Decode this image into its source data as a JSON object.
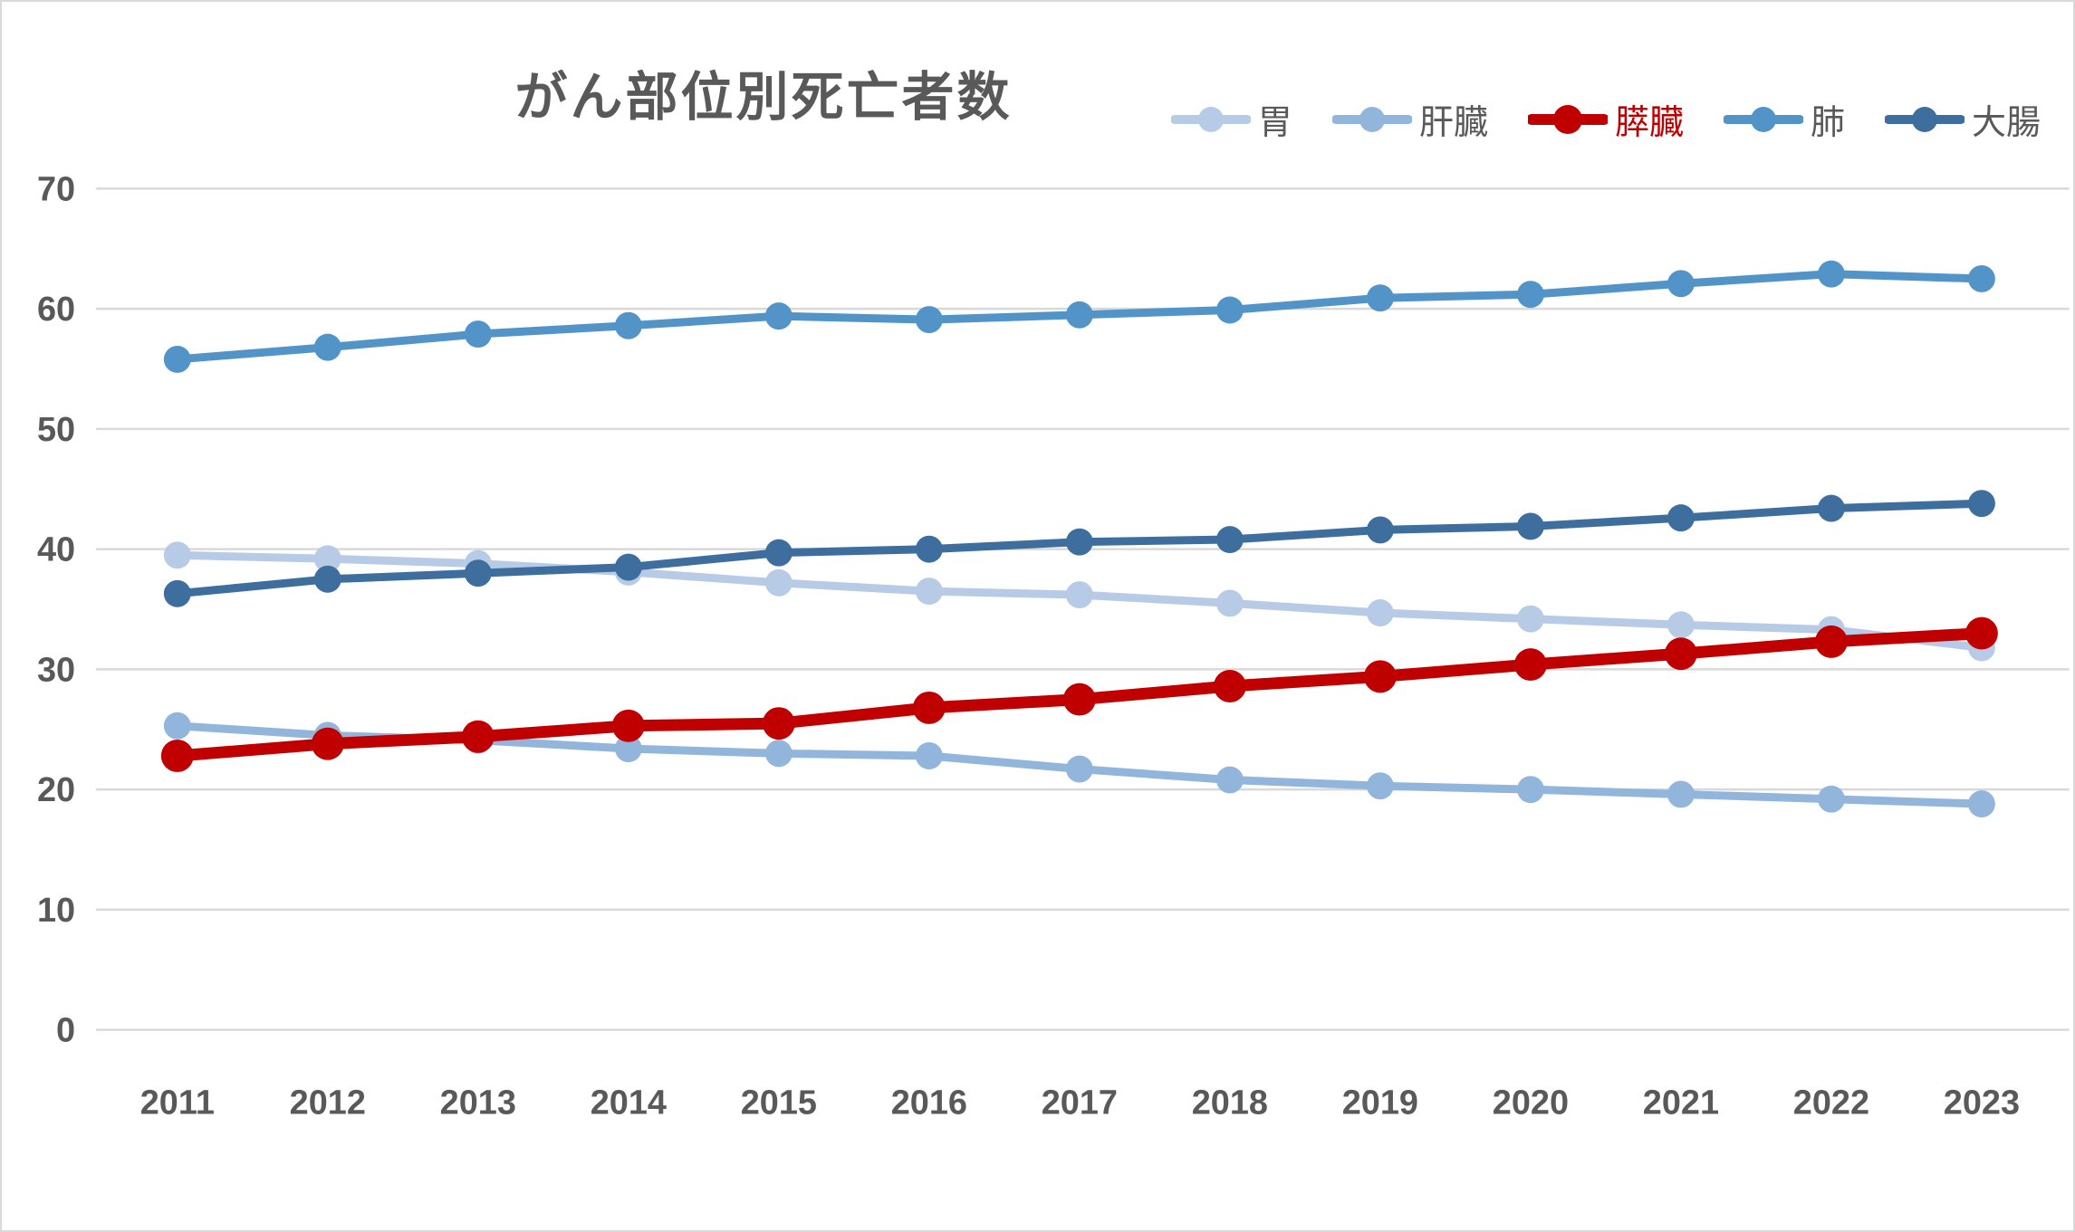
{
  "chart_data": {
    "type": "line",
    "title": "がん部位別死亡者数",
    "x": [
      2011,
      2012,
      2013,
      2014,
      2015,
      2016,
      2017,
      2018,
      2019,
      2020,
      2021,
      2022,
      2023
    ],
    "xlabel": "",
    "ylabel": "",
    "ylim": [
      0,
      70
    ],
    "ytick_step": 10,
    "yticks": [
      0,
      10,
      20,
      30,
      40,
      50,
      60,
      70
    ],
    "grid": true,
    "legend_position": "top-right",
    "gridline_color": "#d9d9d9",
    "axis_text_color": "#595959",
    "title_color": "#595959",
    "series": [
      {
        "name": "胃",
        "color": "#b7cbe6",
        "emphasis": false,
        "values": [
          39.5,
          39.2,
          38.8,
          38.1,
          37.2,
          36.5,
          36.2,
          35.5,
          34.7,
          34.2,
          33.7,
          33.3,
          31.8
        ]
      },
      {
        "name": "肝臓",
        "color": "#92b5dc",
        "emphasis": false,
        "values": [
          25.3,
          24.5,
          24.1,
          23.4,
          23.0,
          22.8,
          21.7,
          20.8,
          20.3,
          20.0,
          19.6,
          19.2,
          18.8
        ]
      },
      {
        "name": "膵臓",
        "color": "#c00000",
        "label_color": "#c00000",
        "emphasis": true,
        "values": [
          22.8,
          23.8,
          24.4,
          25.3,
          25.5,
          26.8,
          27.5,
          28.6,
          29.4,
          30.4,
          31.3,
          32.3,
          33.0
        ]
      },
      {
        "name": "肺",
        "color": "#5394c8",
        "emphasis": false,
        "values": [
          55.8,
          56.8,
          57.9,
          58.6,
          59.4,
          59.1,
          59.5,
          59.9,
          60.9,
          61.2,
          62.1,
          62.9,
          62.5
        ]
      },
      {
        "name": "大腸",
        "color": "#3d6e9d",
        "emphasis": false,
        "values": [
          36.3,
          37.5,
          38.0,
          38.5,
          39.7,
          40.0,
          40.6,
          40.8,
          41.6,
          41.9,
          42.6,
          43.4,
          43.8
        ]
      }
    ]
  }
}
